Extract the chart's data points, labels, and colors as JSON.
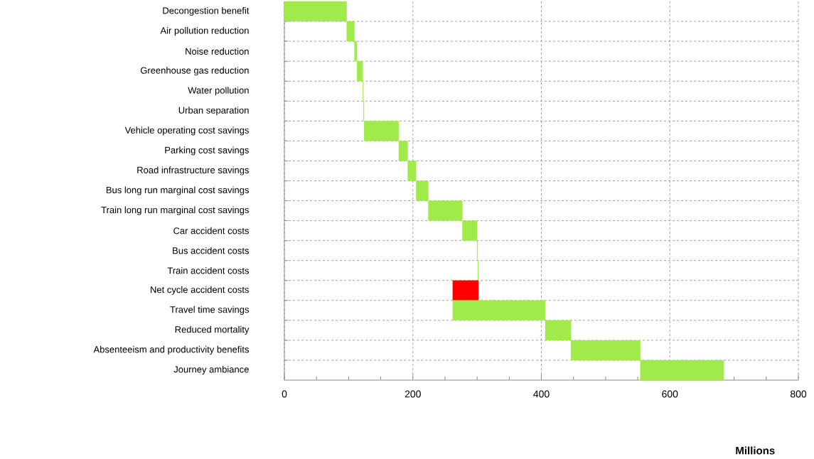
{
  "chart_data": {
    "type": "bar",
    "orientation": "horizontal",
    "xlabel": "Millions",
    "categories": [
      "Decongestion benefit",
      "Air pollution reduction",
      "Noise reduction",
      "Greenhouse gas reduction",
      "Water pollution",
      "Urban separation",
      "Vehicle operating cost savings",
      "Parking cost savings",
      "Road infrastructure savings",
      "Bus long run marginal cost savings",
      "Train long run marginal cost savings",
      "Car accident costs",
      "Bus accident costs",
      "Train accident costs",
      "Net cycle accident costs",
      "Travel time savings",
      "Reduced mortality",
      "Absenteeism and productivity benefits",
      "Journey ambiance"
    ],
    "values": [
      97,
      12,
      4,
      9,
      1,
      1,
      54,
      14,
      13,
      19,
      53,
      23,
      1,
      1,
      -40,
      144,
      40,
      108,
      130
    ],
    "base": [
      0,
      97,
      109,
      113,
      122,
      123,
      124,
      178,
      192,
      205,
      224,
      277,
      300,
      301,
      302,
      262,
      406,
      446,
      554
    ],
    "colors": [
      "#a0ea4a",
      "#a0ea4a",
      "#a0ea4a",
      "#a0ea4a",
      "#a0ea4a",
      "#a0ea4a",
      "#a0ea4a",
      "#a0ea4a",
      "#a0ea4a",
      "#a0ea4a",
      "#a0ea4a",
      "#a0ea4a",
      "#a0ea4a",
      "#a0ea4a",
      "#ff0000",
      "#a0ea4a",
      "#a0ea4a",
      "#a0ea4a",
      "#a0ea4a"
    ],
    "xlim": [
      0,
      800
    ],
    "xticks": [
      0,
      {
        "value": 50,
        "label": null
      },
      {
        "value": 100,
        "label": null
      },
      {
        "value": 150,
        "label": null
      },
      200,
      {
        "value": 250,
        "label": null
      },
      {
        "value": 300,
        "label": null
      },
      {
        "value": 350,
        "label": null
      },
      400,
      {
        "value": 450,
        "label": null
      },
      {
        "value": 500,
        "label": null
      },
      {
        "value": 550,
        "label": null
      },
      600,
      {
        "value": 650,
        "label": null
      },
      {
        "value": 700,
        "label": null
      },
      {
        "value": 750,
        "label": null
      },
      800
    ],
    "grid": true
  }
}
